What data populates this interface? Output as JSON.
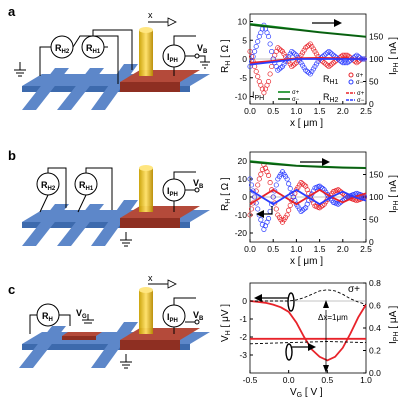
{
  "panels": [
    {
      "letter": "a",
      "schematic": {
        "meters": [
          "R",
          "R",
          "I"
        ],
        "meter_subs": [
          "H2",
          "H1",
          "PH"
        ],
        "x_label": "x",
        "voltage_label": "V",
        "voltage_sub": "B"
      }
    },
    {
      "letter": "b",
      "schematic": {
        "meters": [
          "R",
          "R",
          "I"
        ],
        "meter_subs": [
          "H2",
          "H1",
          "PH"
        ],
        "voltage_label": "V",
        "voltage_sub": "B"
      }
    },
    {
      "letter": "c",
      "schematic": {
        "meters": [
          "R",
          "I"
        ],
        "meter_subs": [
          "H",
          "PH"
        ],
        "gate_label": "V",
        "gate_sub": "G",
        "voltage_label": "V",
        "voltage_sub": "B",
        "x_label": "x"
      }
    }
  ],
  "chart_data": [
    {
      "type": "line",
      "panel": "a",
      "xlabel": "x [ μm ]",
      "ylabel_left": "R_H [ Ω ]",
      "ylabel_right": "I_PH [ nA ]",
      "xlim": [
        0.0,
        2.5
      ],
      "ylim_left": [
        -12,
        12
      ],
      "ylim_right": [
        0,
        200
      ],
      "x_ticks": [
        "0.0",
        "0.5",
        "1.0",
        "1.5",
        "2.0",
        "2.5"
      ],
      "y_ticks_left": [
        "-10",
        "-5",
        "0",
        "5",
        "10"
      ],
      "y_ticks_right": [
        "0",
        "50",
        "100",
        "150"
      ],
      "legend": [
        {
          "label": "I_PH",
          "sub1": "σ+",
          "sub2": "σ−"
        },
        {
          "label": "R_H1",
          "sub1": "σ+",
          "sub2": "σ−"
        },
        {
          "label": "R_H2",
          "sub1": "σ+",
          "sub2": "σ−"
        }
      ],
      "series": [
        {
          "name": "R_H1 σ+",
          "color": "#e8232a",
          "style": "circles",
          "x": [
            0.0,
            0.1,
            0.2,
            0.3,
            0.4,
            0.5,
            0.6,
            0.7,
            0.8,
            0.9,
            1.0,
            1.1,
            1.2,
            1.3,
            1.4,
            1.5,
            1.6,
            1.7,
            1.8,
            1.9,
            2.0,
            2.1,
            2.2,
            2.3,
            2.4,
            2.5
          ],
          "y": [
            2,
            -2,
            -6,
            -9,
            -6,
            0,
            3,
            2,
            0,
            -2,
            -1,
            1,
            3,
            4,
            2,
            0,
            -1,
            -2,
            -1,
            0,
            1,
            1,
            0,
            -1,
            0,
            0
          ]
        },
        {
          "name": "R_H1 σ−",
          "color": "#2b3cff",
          "style": "circles",
          "x": [
            0.0,
            0.1,
            0.2,
            0.3,
            0.4,
            0.5,
            0.6,
            0.7,
            0.8,
            0.9,
            1.0,
            1.1,
            1.2,
            1.3,
            1.4,
            1.5,
            1.6,
            1.7,
            1.8,
            1.9,
            2.0,
            2.1,
            2.2,
            2.3,
            2.4,
            2.5
          ],
          "y": [
            -2,
            2,
            6,
            9,
            6,
            0,
            -3,
            -2,
            0,
            2,
            1,
            -1,
            -3,
            -4,
            -2,
            0,
            1,
            2,
            1,
            0,
            -1,
            -1,
            0,
            1,
            0,
            0
          ]
        },
        {
          "name": "R_H2 σ+",
          "color": "#e8232a",
          "style": "line",
          "x": [
            0.0,
            0.5,
            1.0,
            1.5,
            2.0,
            2.5
          ],
          "y": [
            -1,
            -0.5,
            0.2,
            0.3,
            0.2,
            0
          ]
        },
        {
          "name": "R_H2 σ−",
          "color": "#2b3cff",
          "style": "line",
          "x": [
            0.0,
            0.5,
            1.0,
            1.5,
            2.0,
            2.5
          ],
          "y": [
            -1.5,
            -0.8,
            0,
            0,
            0,
            0
          ]
        },
        {
          "name": "I_PH σ+",
          "color": "#0a8a1a",
          "style": "line",
          "axis": "right",
          "x": [
            0.0,
            0.5,
            1.0,
            1.5,
            2.0,
            2.5
          ],
          "y": [
            178,
            172,
            166,
            160,
            155,
            150
          ]
        },
        {
          "name": "I_PH σ−",
          "color": "#0a5a10",
          "style": "line",
          "axis": "right",
          "x": [
            0.0,
            0.5,
            1.0,
            1.5,
            2.0,
            2.5
          ],
          "y": [
            176,
            170,
            165,
            159,
            154,
            149
          ]
        }
      ]
    },
    {
      "type": "line",
      "panel": "b",
      "xlabel": "x [ μm ]",
      "ylabel_left": "R_H [ Ω ]",
      "ylabel_right": "I_PH [ nA ]",
      "xlim": [
        0.0,
        2.5
      ],
      "ylim_left": [
        -25,
        25
      ],
      "ylim_right": [
        0,
        200
      ],
      "x_ticks": [
        "0.0",
        "0.5",
        "1.0",
        "1.5",
        "2.0",
        "2.5"
      ],
      "y_ticks_left": [
        "-20",
        "-10",
        "0",
        "10",
        "20"
      ],
      "y_ticks_right": [
        "0",
        "50",
        "100",
        "150"
      ],
      "series": [
        {
          "name": "R_H1 σ+",
          "color": "#e8232a",
          "style": "circles",
          "x": [
            0.0,
            0.1,
            0.2,
            0.3,
            0.4,
            0.5,
            0.6,
            0.7,
            0.8,
            0.9,
            1.0,
            1.1,
            1.2,
            1.3,
            1.4,
            1.5,
            1.6,
            1.7,
            1.8,
            1.9,
            2.0,
            2.1,
            2.2,
            2.3,
            2.4,
            2.5
          ],
          "y": [
            -10,
            0,
            10,
            18,
            12,
            0,
            -10,
            -14,
            -10,
            -2,
            4,
            8,
            6,
            0,
            -5,
            -6,
            -4,
            0,
            3,
            4,
            2,
            0,
            -1,
            -2,
            -1,
            0
          ]
        },
        {
          "name": "R_H1 σ−",
          "color": "#2b3cff",
          "style": "circles",
          "x": [
            0.0,
            0.1,
            0.2,
            0.3,
            0.4,
            0.5,
            0.6,
            0.7,
            0.8,
            0.9,
            1.0,
            1.1,
            1.2,
            1.3,
            1.4,
            1.5,
            1.6,
            1.7,
            1.8,
            1.9,
            2.0,
            2.1,
            2.2,
            2.3,
            2.4,
            2.5
          ],
          "y": [
            10,
            0,
            -10,
            -18,
            -12,
            0,
            10,
            14,
            10,
            2,
            -4,
            -8,
            -6,
            0,
            5,
            6,
            4,
            0,
            -3,
            -4,
            -2,
            0,
            1,
            2,
            1,
            0
          ]
        },
        {
          "name": "R_H2 σ+",
          "color": "#e8232a",
          "style": "line",
          "x": [
            0.0,
            0.25,
            0.5,
            0.75,
            1.0,
            1.25,
            1.5,
            1.75,
            2.0,
            2.25,
            2.5
          ],
          "y": [
            -4,
            0,
            4,
            0,
            -4,
            0,
            4,
            0,
            -3,
            0,
            2
          ]
        },
        {
          "name": "R_H2 σ−",
          "color": "#2b3cff",
          "style": "line",
          "x": [
            0.0,
            0.25,
            0.5,
            0.75,
            1.0,
            1.25,
            1.5,
            1.75,
            2.0,
            2.25,
            2.5
          ],
          "y": [
            4,
            0,
            -4,
            0,
            4,
            0,
            -4,
            0,
            3,
            0,
            -2
          ]
        },
        {
          "name": "I_PH σ+",
          "color": "#0a8a1a",
          "style": "line",
          "axis": "right",
          "x": [
            0.0,
            0.5,
            1.0,
            1.5,
            2.0,
            2.5
          ],
          "y": [
            180,
            175,
            170,
            168,
            166,
            165
          ]
        },
        {
          "name": "I_PH σ−",
          "color": "#0a5a10",
          "style": "line",
          "axis": "right",
          "x": [
            0.0,
            0.5,
            1.0,
            1.5,
            2.0,
            2.5
          ],
          "y": [
            178,
            173,
            169,
            167,
            165,
            164
          ]
        }
      ]
    },
    {
      "type": "line",
      "panel": "c",
      "xlabel": "V_G [ V ]",
      "ylabel_left": "V_H [ μV ]",
      "ylabel_right": "I_PH [ μA ]",
      "xlim": [
        -0.5,
        1.0
      ],
      "ylim_left": [
        -4,
        1
      ],
      "ylim_right": [
        0,
        0.8
      ],
      "x_ticks": [
        "-0.5",
        "0.0",
        "0.5",
        "1.0"
      ],
      "y_ticks_left": [
        "-3",
        "-2",
        "-1",
        "0"
      ],
      "y_ticks_right": [
        "0.0",
        "0.2",
        "0.4",
        "0.6",
        "0.8"
      ],
      "annotations": [
        "σ+",
        "Δx=1μm"
      ],
      "series": [
        {
          "name": "V_H",
          "color": "#e8232a",
          "style": "line",
          "x": [
            -0.5,
            -0.4,
            -0.3,
            -0.2,
            -0.1,
            0.0,
            0.1,
            0.2,
            0.3,
            0.4,
            0.5,
            0.6,
            0.7,
            0.8,
            0.9,
            1.0
          ],
          "y": [
            0.0,
            -0.05,
            -0.1,
            -0.2,
            -0.35,
            -0.6,
            -1.2,
            -2.0,
            -2.7,
            -3.1,
            -3.3,
            -3.1,
            -2.6,
            -1.8,
            -0.9,
            -0.2
          ]
        },
        {
          "name": "V_H ref",
          "color": "#e8232a",
          "style": "line",
          "x": [
            -0.5,
            0.0,
            0.5,
            1.0
          ],
          "y": [
            -2.1,
            -2.1,
            -2.1,
            -2.1
          ]
        },
        {
          "name": "I_PH",
          "color": "#000000",
          "style": "dashed",
          "axis": "right",
          "x": [
            -0.5,
            -0.3,
            -0.1,
            0.0,
            0.1,
            0.2,
            0.3,
            0.4,
            0.5,
            0.6,
            0.7,
            0.8,
            0.9,
            1.0
          ],
          "y": [
            0.64,
            0.64,
            0.64,
            0.64,
            0.65,
            0.67,
            0.7,
            0.73,
            0.74,
            0.73,
            0.7,
            0.66,
            0.63,
            0.61
          ]
        },
        {
          "name": "I_PH ref",
          "color": "#000000",
          "style": "dashed",
          "axis": "right",
          "x": [
            -0.5,
            0.0,
            0.5,
            1.0
          ],
          "y": [
            0.26,
            0.27,
            0.28,
            0.27
          ]
        }
      ]
    }
  ]
}
